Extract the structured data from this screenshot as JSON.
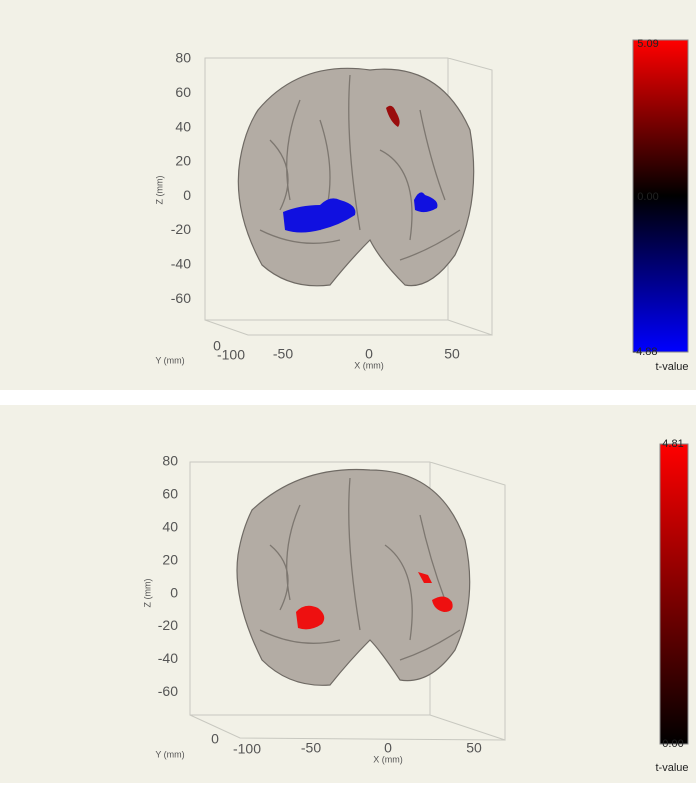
{
  "panels": [
    {
      "z_label": "Z (mm)",
      "x_label": "X (mm)",
      "y_label": "Y (mm)",
      "z_ticks": [
        "80",
        "60",
        "40",
        "20",
        "0",
        "-20",
        "-40",
        "-60"
      ],
      "x_ticks": [
        "-50",
        "0",
        "50"
      ],
      "y_ticks": [
        "0",
        "-100"
      ],
      "colorbar": {
        "labels": [
          "5.09",
          "0.00",
          "-4.88"
        ],
        "title": "t-value"
      }
    },
    {
      "z_label": "Z (mm)",
      "x_label": "X (mm)",
      "y_label": "Y (mm)",
      "z_ticks": [
        "80",
        "60",
        "40",
        "20",
        "0",
        "-20",
        "-40",
        "-60"
      ],
      "x_ticks": [
        "-50",
        "0",
        "50"
      ],
      "y_ticks": [
        "0",
        "-100"
      ],
      "colorbar": {
        "labels": [
          "4.81",
          "0.00"
        ],
        "title": "t-value"
      }
    }
  ]
}
